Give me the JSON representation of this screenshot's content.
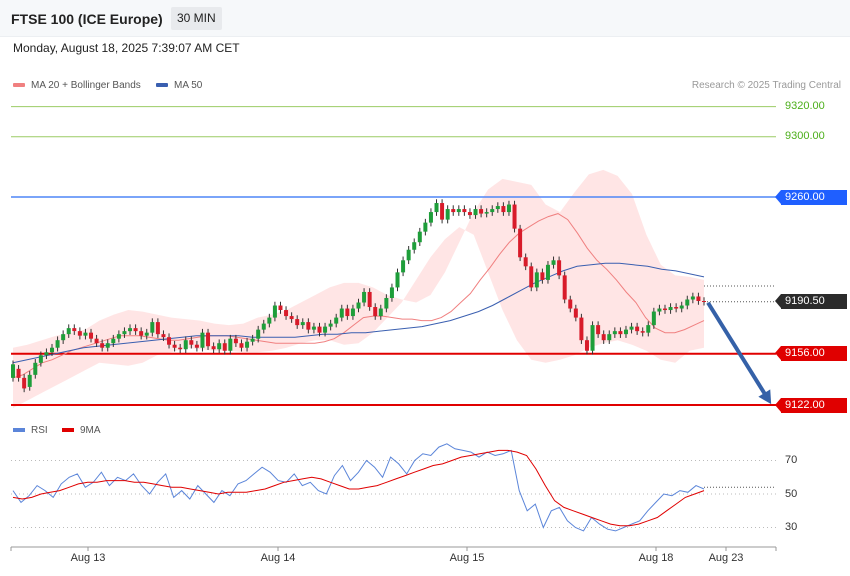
{
  "header": {
    "title": "FTSE 100 (ICE Europe)",
    "timeframe": "30 MIN"
  },
  "datetime": "Monday, August 18, 2025 7:39:07 AM CET",
  "legend": {
    "ma20_label": "MA 20 + Bollinger Bands",
    "ma50_label": "MA 50",
    "credit": "Research © 2025 Trading Central"
  },
  "rsi_legend": {
    "rsi_label": "RSI",
    "ma_label": "9MA"
  },
  "colors": {
    "bb_fill": "#ffd0d0",
    "ma20": "#f08080",
    "ma50": "#3a5fb0",
    "up": "#1e9e3a",
    "down": "#d81b2a",
    "resistance": "#4f86f7",
    "support": "#e00000",
    "target": "#9ccc65",
    "arrow": "#3561a8",
    "rsi": "#5b85d9",
    "rsi_ma": "#e00000"
  },
  "levels": [
    {
      "label": "9320.00",
      "value": 9320,
      "style": "green"
    },
    {
      "label": "9300.00",
      "value": 9300,
      "style": "green"
    },
    {
      "label": "9260.00",
      "value": 9260,
      "style": "blue"
    },
    {
      "label": "9190.50",
      "value": 9190.5,
      "style": "dark"
    },
    {
      "label": "9156.00",
      "value": 9156,
      "style": "red"
    },
    {
      "label": "9122.00",
      "value": 9122,
      "style": "red"
    }
  ],
  "rsi_ticks": [
    "70",
    "50",
    "30"
  ],
  "chart_data": {
    "type": "candlestick",
    "x_labels": [
      "Aug 13",
      "Aug 14",
      "Aug 15",
      "Aug 18",
      "Aug 23"
    ],
    "price_range": [
      9110,
      9330
    ],
    "candles": [
      [
        9140,
        9149
      ],
      [
        9146,
        9140
      ],
      [
        9140,
        9133
      ],
      [
        9134,
        9142
      ],
      [
        9142,
        9150
      ],
      [
        9150,
        9155
      ],
      [
        9155,
        9157
      ],
      [
        9157,
        9160
      ],
      [
        9160,
        9165
      ],
      [
        9165,
        9169
      ],
      [
        9169,
        9173
      ],
      [
        9173,
        9171
      ],
      [
        9171,
        9168
      ],
      [
        9168,
        9170
      ],
      [
        9170,
        9166
      ],
      [
        9166,
        9163
      ],
      [
        9163,
        9160
      ],
      [
        9160,
        9163
      ],
      [
        9163,
        9166
      ],
      [
        9166,
        9169
      ],
      [
        9169,
        9171
      ],
      [
        9171,
        9173
      ],
      [
        9173,
        9171
      ],
      [
        9171,
        9168
      ],
      [
        9168,
        9170
      ],
      [
        9170,
        9177
      ],
      [
        9177,
        9169
      ],
      [
        9169,
        9167
      ],
      [
        9167,
        9162
      ],
      [
        9162,
        9160
      ],
      [
        9160,
        9159
      ],
      [
        9159,
        9165
      ],
      [
        9165,
        9162
      ],
      [
        9162,
        9160
      ],
      [
        9160,
        9170
      ],
      [
        9170,
        9161
      ],
      [
        9161,
        9159
      ],
      [
        9159,
        9163
      ],
      [
        9163,
        9158
      ],
      [
        9158,
        9166
      ],
      [
        9166,
        9163
      ],
      [
        9163,
        9160
      ],
      [
        9160,
        9164
      ],
      [
        9164,
        9166
      ],
      [
        9166,
        9172
      ],
      [
        9172,
        9176
      ],
      [
        9176,
        9180
      ],
      [
        9180,
        9188
      ],
      [
        9188,
        9185
      ],
      [
        9185,
        9181
      ],
      [
        9181,
        9179
      ],
      [
        9179,
        9175
      ],
      [
        9175,
        9177
      ],
      [
        9177,
        9172
      ],
      [
        9172,
        9174
      ],
      [
        9174,
        9170
      ],
      [
        9170,
        9174
      ],
      [
        9174,
        9176
      ],
      [
        9176,
        9180
      ],
      [
        9180,
        9186
      ],
      [
        9186,
        9181
      ],
      [
        9181,
        9186
      ],
      [
        9186,
        9190
      ],
      [
        9190,
        9197
      ],
      [
        9197,
        9187
      ],
      [
        9187,
        9181
      ],
      [
        9181,
        9186
      ],
      [
        9186,
        9193
      ],
      [
        9193,
        9200
      ],
      [
        9200,
        9210
      ],
      [
        9210,
        9218
      ],
      [
        9218,
        9225
      ],
      [
        9225,
        9230
      ],
      [
        9230,
        9237
      ],
      [
        9237,
        9243
      ],
      [
        9243,
        9250
      ],
      [
        9250,
        9256
      ],
      [
        9256,
        9245
      ],
      [
        9245,
        9252
      ],
      [
        9252,
        9250
      ],
      [
        9250,
        9252
      ],
      [
        9252,
        9250
      ],
      [
        9250,
        9248
      ],
      [
        9248,
        9252
      ],
      [
        9252,
        9249
      ],
      [
        9249,
        9250
      ],
      [
        9250,
        9252
      ],
      [
        9252,
        9254
      ],
      [
        9254,
        9250
      ],
      [
        9250,
        9255
      ],
      [
        9255,
        9239
      ],
      [
        9239,
        9220
      ],
      [
        9220,
        9214
      ],
      [
        9214,
        9200
      ],
      [
        9200,
        9210
      ],
      [
        9210,
        9205
      ],
      [
        9205,
        9215
      ],
      [
        9215,
        9218
      ],
      [
        9218,
        9208
      ],
      [
        9208,
        9192
      ],
      [
        9192,
        9186
      ],
      [
        9186,
        9180
      ],
      [
        9180,
        9165
      ],
      [
        9165,
        9158
      ],
      [
        9158,
        9175
      ],
      [
        9175,
        9169
      ],
      [
        9169,
        9165
      ],
      [
        9165,
        9169
      ],
      [
        9169,
        9171
      ],
      [
        9171,
        9169
      ],
      [
        9169,
        9172
      ],
      [
        9172,
        9174
      ],
      [
        9174,
        9171
      ],
      [
        9171,
        9170
      ],
      [
        9170,
        9175
      ],
      [
        9175,
        9184
      ],
      [
        9184,
        9186
      ],
      [
        9186,
        9185
      ],
      [
        9185,
        9187
      ],
      [
        9187,
        9186
      ],
      [
        9186,
        9188
      ],
      [
        9188,
        9192
      ],
      [
        9192,
        9194
      ],
      [
        9194,
        9191
      ],
      [
        9191,
        9190.5
      ]
    ],
    "ma20": [
      9140,
      9142,
      9146,
      9150,
      9152,
      9155,
      9158,
      9160,
      9162,
      9164,
      9166,
      9168,
      9168,
      9168,
      9167,
      9166,
      9165,
      9165,
      9166,
      9167,
      9168,
      9168,
      9168,
      9167,
      9166,
      9165,
      9164,
      9163,
      9163,
      9163,
      9163,
      9163,
      9164,
      9166,
      9170,
      9175,
      9180,
      9181,
      9181,
      9180,
      9179,
      9179,
      9178,
      9178,
      9180,
      9184,
      9190,
      9196,
      9205,
      9213,
      9222,
      9230,
      9236,
      9240,
      9244,
      9247,
      9249,
      9245,
      9236,
      9226,
      9218,
      9212,
      9205,
      9197,
      9190,
      9180,
      9173,
      9170,
      9170,
      9172,
      9175,
      9178
    ],
    "ma50": [
      9150,
      9152,
      9154,
      9156,
      9158,
      9160,
      9161,
      9162,
      9163,
      9164,
      9165,
      9166,
      9167,
      9168,
      9168,
      9168,
      9168,
      9167,
      9167,
      9167,
      9167,
      9168,
      9169,
      9169,
      9170,
      9170,
      9171,
      9172,
      9173,
      9174,
      9176,
      9178,
      9181,
      9184,
      9188,
      9193,
      9198,
      9203,
      9207,
      9211,
      9214,
      9215,
      9216,
      9216,
      9215,
      9214,
      9212,
      9211,
      9209,
      9207
    ],
    "bb_upper": [
      9160,
      9162,
      9165,
      9168,
      9170,
      9172,
      9178,
      9182,
      9185,
      9184,
      9182,
      9180,
      9179,
      9178,
      9176,
      9175,
      9176,
      9180,
      9182,
      9185,
      9190,
      9195,
      9200,
      9203,
      9203,
      9200,
      9195,
      9192,
      9190,
      9195,
      9210,
      9230,
      9250,
      9265,
      9272,
      9270,
      9268,
      9255,
      9250,
      9263,
      9275,
      9278,
      9274,
      9262,
      9235,
      9215,
      9208,
      9207,
      9205
    ],
    "bb_lower": [
      9120,
      9125,
      9130,
      9135,
      9140,
      9145,
      9150,
      9149,
      9148,
      9150,
      9155,
      9157,
      9160,
      9159,
      9158,
      9158,
      9157,
      9157,
      9158,
      9160,
      9163,
      9165,
      9165,
      9162,
      9163,
      9170,
      9180,
      9190,
      9205,
      9220,
      9232,
      9240,
      9235,
      9210,
      9185,
      9165,
      9152,
      9150,
      9152,
      9155,
      9160,
      9163,
      9165,
      9162,
      9158,
      9152,
      9150,
      9158,
      9160
    ],
    "rsi": [
      52,
      45,
      49,
      55,
      52,
      48,
      56,
      60,
      62,
      54,
      57,
      63,
      55,
      60,
      58,
      62,
      55,
      50,
      57,
      62,
      48,
      52,
      47,
      55,
      50,
      45,
      52,
      49,
      56,
      58,
      62,
      66,
      63,
      58,
      57,
      62,
      55,
      57,
      52,
      50,
      61,
      67,
      58,
      63,
      70,
      66,
      60,
      72,
      68,
      62,
      70,
      74,
      73,
      78,
      80,
      77,
      76,
      75,
      72,
      75,
      73,
      74,
      76,
      52,
      40,
      44,
      30,
      40,
      42,
      34,
      30,
      28,
      36,
      32,
      29,
      28,
      30,
      32,
      34,
      40,
      45,
      50,
      49,
      52,
      51,
      55,
      53
    ],
    "rsi_ma": [
      48,
      47,
      48,
      50,
      51,
      52,
      54,
      56,
      57,
      57,
      58,
      58,
      58,
      57,
      57,
      56,
      55,
      54,
      54,
      53,
      52,
      51,
      50,
      51,
      51,
      51,
      52,
      53,
      55,
      57,
      58,
      59,
      60,
      59,
      57,
      55,
      53,
      53,
      54,
      55,
      57,
      59,
      61,
      63,
      65,
      67,
      68,
      70,
      72,
      73,
      74,
      75,
      76,
      76,
      75,
      73,
      65,
      55,
      46,
      42,
      40,
      38,
      36,
      34,
      32,
      31,
      31,
      32,
      34,
      36,
      40,
      44,
      48,
      50,
      52
    ],
    "projection": {
      "from": 9190.5,
      "to": 9122
    }
  }
}
